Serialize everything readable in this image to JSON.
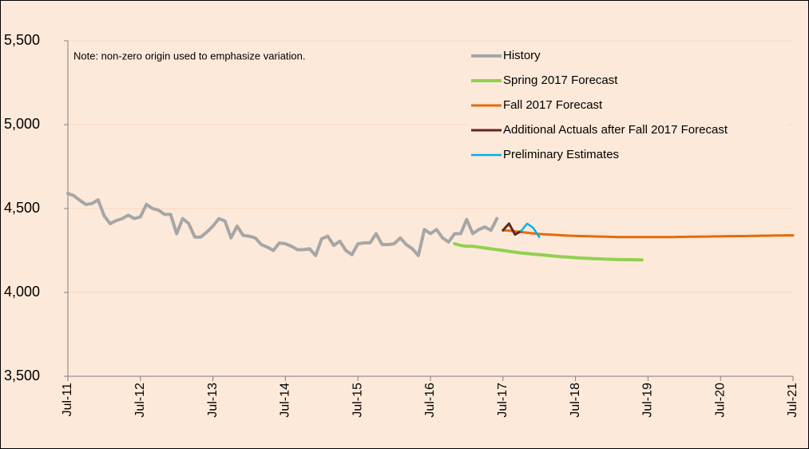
{
  "chart_data": {
    "type": "line",
    "annotation": "Note: non-zero origin used to emphasize variation.",
    "categories": [
      "Jul-11",
      null,
      null,
      null,
      null,
      null,
      null,
      null,
      null,
      null,
      null,
      null,
      "Jul-12",
      null,
      null,
      null,
      null,
      null,
      null,
      null,
      null,
      null,
      null,
      null,
      "Jul-13",
      null,
      null,
      null,
      null,
      null,
      null,
      null,
      null,
      null,
      null,
      null,
      "Jul-14",
      null,
      null,
      null,
      null,
      null,
      null,
      null,
      null,
      null,
      null,
      null,
      "Jul-15",
      null,
      null,
      null,
      null,
      null,
      null,
      null,
      null,
      null,
      null,
      null,
      "Jul-16",
      null,
      null,
      null,
      null,
      null,
      null,
      null,
      null,
      null,
      null,
      null,
      "Jul-17",
      null,
      null,
      null,
      null,
      null,
      null,
      null,
      null,
      null,
      null,
      null,
      "Jul-18",
      null,
      null,
      null,
      null,
      null,
      null,
      null,
      null,
      null,
      null,
      null,
      "Jul-19",
      null,
      null,
      null,
      null,
      null,
      null,
      null,
      null,
      null,
      null,
      null,
      "Jul-20",
      null,
      null,
      null,
      null,
      null,
      null,
      null,
      null,
      null,
      null,
      null,
      "Jul-21"
    ],
    "series": [
      {
        "name": "History",
        "color": "#a6a6a6",
        "width": 4,
        "values": [
          4590,
          4576,
          4548,
          4524,
          4530,
          4552,
          4457,
          4410,
          4428,
          4440,
          4460,
          4440,
          4450,
          4525,
          4500,
          4490,
          4465,
          4465,
          4350,
          4440,
          4410,
          4330,
          4330,
          4360,
          4395,
          4440,
          4425,
          4325,
          4395,
          4340,
          4335,
          4325,
          4285,
          4270,
          4250,
          4295,
          4290,
          4275,
          4255,
          4255,
          4260,
          4220,
          4320,
          4335,
          4280,
          4305,
          4250,
          4225,
          4290,
          4295,
          4295,
          4350,
          4285,
          4285,
          4290,
          4325,
          4285,
          4260,
          4220,
          4375,
          4350,
          4375,
          4325,
          4300,
          4350,
          4350,
          4435,
          4350,
          4375,
          4390,
          4370,
          4440,
          null,
          null,
          null,
          null,
          null,
          null,
          null,
          null,
          null,
          null,
          null,
          null,
          null,
          null,
          null,
          null,
          null,
          null,
          null,
          null,
          null,
          null,
          null,
          null,
          null,
          null,
          null,
          null,
          null,
          null,
          null,
          null,
          null,
          null,
          null,
          null,
          null,
          null,
          null,
          null,
          null,
          null,
          null,
          null,
          null,
          null,
          null,
          null,
          null
        ]
      },
      {
        "name": "Spring 2017 Forecast",
        "color": "#92d050",
        "width": 4,
        "values": [
          null,
          null,
          null,
          null,
          null,
          null,
          null,
          null,
          null,
          null,
          null,
          null,
          null,
          null,
          null,
          null,
          null,
          null,
          null,
          null,
          null,
          null,
          null,
          null,
          null,
          null,
          null,
          null,
          null,
          null,
          null,
          null,
          null,
          null,
          null,
          null,
          null,
          null,
          null,
          null,
          null,
          null,
          null,
          null,
          null,
          null,
          null,
          null,
          null,
          null,
          null,
          null,
          null,
          null,
          null,
          null,
          null,
          null,
          null,
          null,
          null,
          null,
          null,
          null,
          4290,
          4280,
          4275,
          4275,
          4270,
          4265,
          4260,
          4255,
          4250,
          4245,
          4240,
          4235,
          4232,
          4228,
          4225,
          4222,
          4218,
          4215,
          4212,
          4210,
          4207,
          4205,
          4203,
          4201,
          4200,
          4198,
          4197,
          4196,
          4195,
          4195,
          4194,
          4194,
          null,
          null,
          null,
          null,
          null,
          null,
          null,
          null,
          null,
          null,
          null,
          null,
          null,
          null,
          null,
          null,
          null,
          null,
          null,
          null,
          null,
          null,
          null,
          null,
          null
        ]
      },
      {
        "name": "Fall 2017 Forecast",
        "color": "#e46c0a",
        "width": 3,
        "values": [
          null,
          null,
          null,
          null,
          null,
          null,
          null,
          null,
          null,
          null,
          null,
          null,
          null,
          null,
          null,
          null,
          null,
          null,
          null,
          null,
          null,
          null,
          null,
          null,
          null,
          null,
          null,
          null,
          null,
          null,
          null,
          null,
          null,
          null,
          null,
          null,
          null,
          null,
          null,
          null,
          null,
          null,
          null,
          null,
          null,
          null,
          null,
          null,
          null,
          null,
          null,
          null,
          null,
          null,
          null,
          null,
          null,
          null,
          null,
          null,
          null,
          null,
          null,
          null,
          null,
          null,
          null,
          null,
          null,
          null,
          null,
          null,
          4370,
          4368,
          4364,
          4360,
          4356,
          4352,
          4348,
          4346,
          4344,
          4342,
          4340,
          4338,
          4337,
          4336,
          4335,
          4334,
          4333,
          4332,
          4331,
          4330,
          4330,
          4330,
          4330,
          4330,
          4330,
          4330,
          4330,
          4330,
          4330,
          4331,
          4331,
          4332,
          4332,
          4333,
          4333,
          4334,
          4334,
          4335,
          4335,
          4336,
          4336,
          4337,
          4337,
          4338,
          4338,
          4339,
          4339,
          4340,
          4340
        ]
      },
      {
        "name": "Additional Actuals after Fall 2017 Forecast",
        "color": "#632523",
        "width": 3,
        "values": [
          null,
          null,
          null,
          null,
          null,
          null,
          null,
          null,
          null,
          null,
          null,
          null,
          null,
          null,
          null,
          null,
          null,
          null,
          null,
          null,
          null,
          null,
          null,
          null,
          null,
          null,
          null,
          null,
          null,
          null,
          null,
          null,
          null,
          null,
          null,
          null,
          null,
          null,
          null,
          null,
          null,
          null,
          null,
          null,
          null,
          null,
          null,
          null,
          null,
          null,
          null,
          null,
          null,
          null,
          null,
          null,
          null,
          null,
          null,
          null,
          null,
          null,
          null,
          null,
          null,
          null,
          null,
          null,
          null,
          null,
          null,
          null,
          4370,
          4410,
          4345,
          4365,
          null,
          null,
          null,
          null,
          null,
          null,
          null,
          null,
          null,
          null,
          null,
          null,
          null,
          null,
          null,
          null,
          null,
          null,
          null,
          null,
          null,
          null,
          null,
          null,
          null,
          null,
          null,
          null,
          null,
          null,
          null,
          null,
          null,
          null,
          null,
          null,
          null,
          null,
          null,
          null,
          null,
          null,
          null,
          null,
          null
        ]
      },
      {
        "name": "Preliminary Estimates",
        "color": "#00b0f0",
        "width": 2.5,
        "values": [
          null,
          null,
          null,
          null,
          null,
          null,
          null,
          null,
          null,
          null,
          null,
          null,
          null,
          null,
          null,
          null,
          null,
          null,
          null,
          null,
          null,
          null,
          null,
          null,
          null,
          null,
          null,
          null,
          null,
          null,
          null,
          null,
          null,
          null,
          null,
          null,
          null,
          null,
          null,
          null,
          null,
          null,
          null,
          null,
          null,
          null,
          null,
          null,
          null,
          null,
          null,
          null,
          null,
          null,
          null,
          null,
          null,
          null,
          null,
          null,
          null,
          null,
          null,
          null,
          null,
          null,
          null,
          null,
          null,
          null,
          null,
          null,
          null,
          null,
          null,
          4365,
          4410,
          4385,
          4330,
          null,
          null,
          null,
          null,
          null,
          null,
          null,
          null,
          null,
          null,
          null,
          null,
          null,
          null,
          null,
          null,
          null,
          null,
          null,
          null,
          null,
          null,
          null,
          null,
          null,
          null,
          null,
          null,
          null,
          null,
          null,
          null,
          null,
          null,
          null,
          null,
          null,
          null,
          null,
          null,
          null,
          null
        ]
      }
    ],
    "ylim": [
      3500,
      5500
    ],
    "yticks": [
      {
        "value": 3500,
        "label": "3,500"
      },
      {
        "value": 4000,
        "label": "4,000"
      },
      {
        "value": 4500,
        "label": "4,500"
      },
      {
        "value": 5000,
        "label": "5,000"
      },
      {
        "value": 5500,
        "label": "5,500"
      }
    ],
    "grid": true,
    "legend": "top-right"
  }
}
